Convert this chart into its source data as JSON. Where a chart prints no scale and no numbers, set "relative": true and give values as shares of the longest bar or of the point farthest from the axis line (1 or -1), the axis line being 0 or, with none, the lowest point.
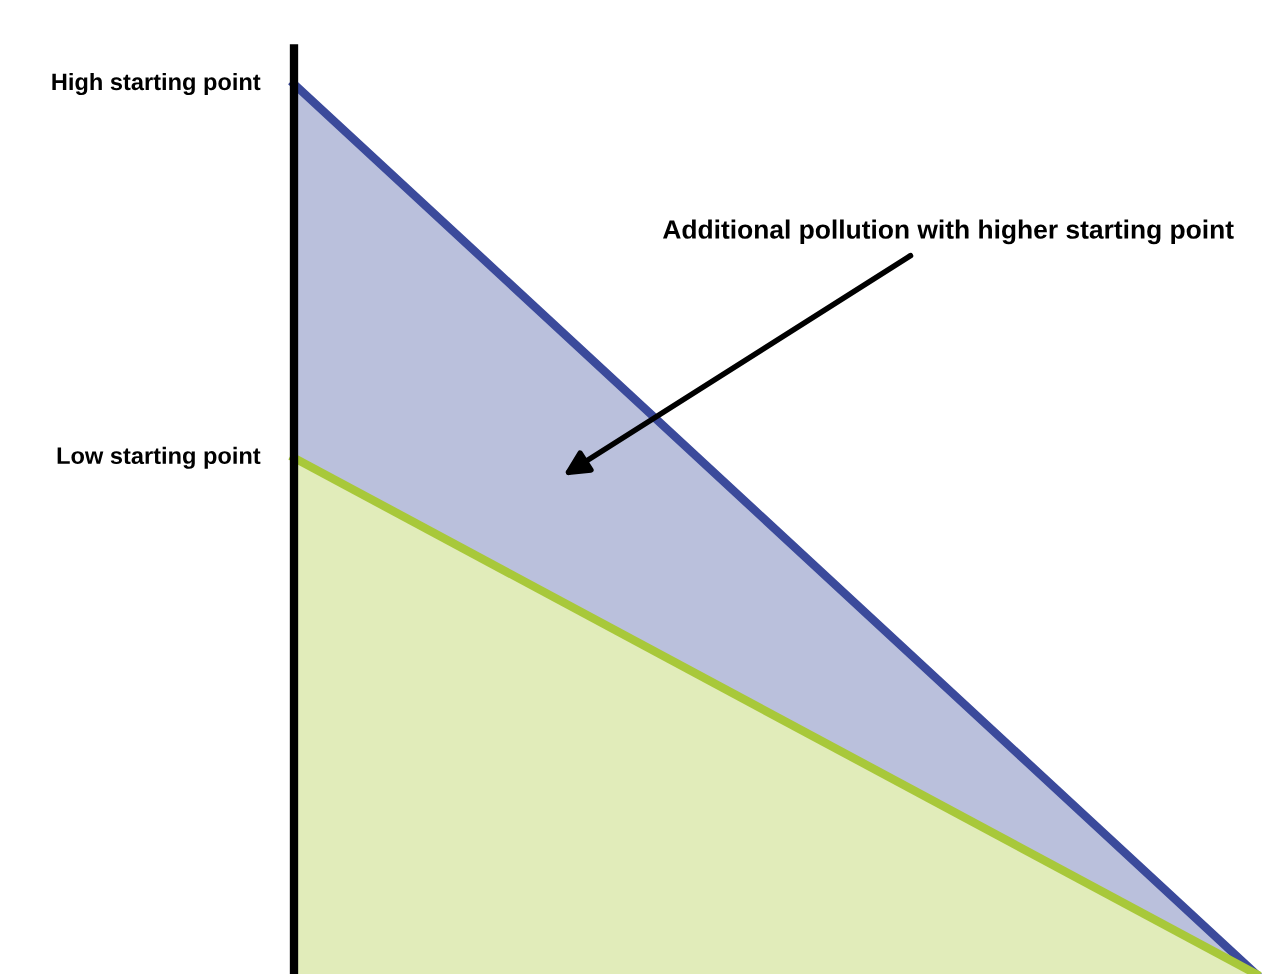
{
  "chart_data": {
    "type": "area",
    "relative": true,
    "categories": [
      null,
      null
    ],
    "series": [
      {
        "color": "#3b4a9b",
        "values": [
          1,
          0
        ]
      },
      {
        "color": "#a8c83a",
        "values": [
          0.58,
          0
        ]
      }
    ],
    "annotations": [
      "High starting point",
      "Low starting point",
      "Additional pollution with higher starting point"
    ]
  }
}
